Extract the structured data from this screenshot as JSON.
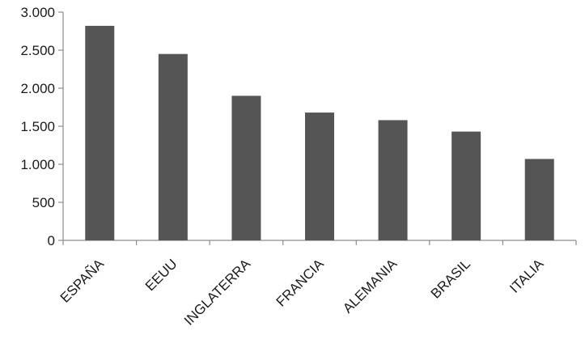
{
  "chart_data": {
    "type": "bar",
    "title": "",
    "xlabel": "",
    "ylabel": "",
    "categories": [
      "ESPAÑA",
      "EEUU",
      "INGLATERRA",
      "FRANCIA",
      "ALEMANIA",
      "BRASIL",
      "ITALIA"
    ],
    "values": [
      2820,
      2450,
      1900,
      1680,
      1580,
      1430,
      1070
    ],
    "ylim": [
      0,
      3000
    ],
    "yticks": [
      0,
      500,
      1000,
      1500,
      2000,
      2500,
      3000
    ],
    "ytick_labels": [
      "0",
      "500",
      "1.000",
      "1.500",
      "2.000",
      "2.500",
      "3.000"
    ],
    "bar_color": "#555555",
    "axis_color": "#8c8c8c",
    "grid": false,
    "legend": "none"
  }
}
